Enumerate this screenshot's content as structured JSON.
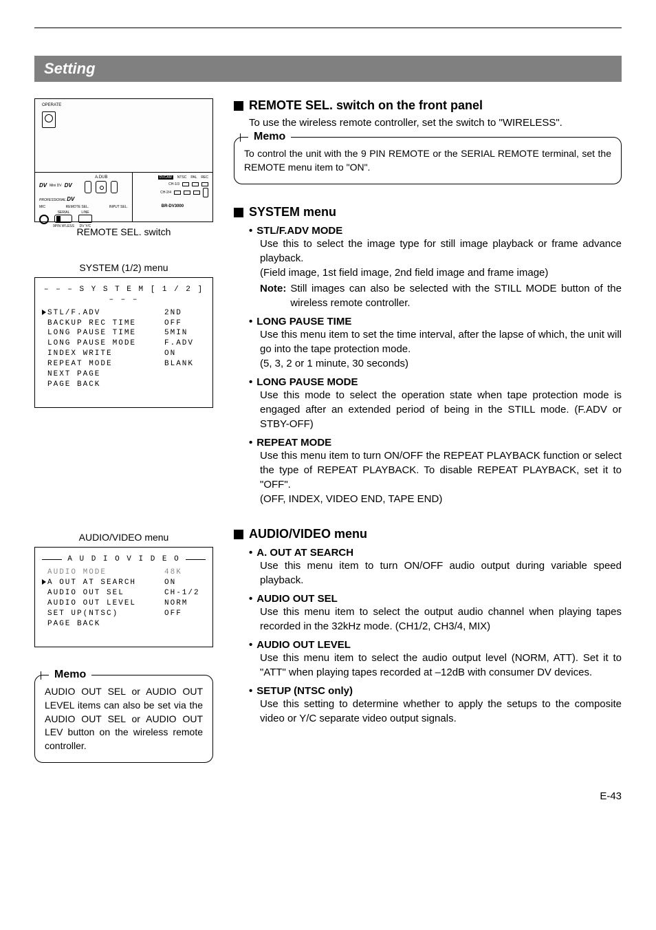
{
  "page": {
    "title": "Setting",
    "pageNumber": "E-43"
  },
  "left": {
    "diagramCaption": "REMOTE SEL. switch",
    "diagram": {
      "operate": "OPERATE",
      "adub": "A.DUB",
      "professional": "PROFESSIONAL",
      "dv": "DV",
      "miniDV": "Mini DV",
      "mic": "MIC",
      "remoteSel": "REMOTE SEL.",
      "inputSel": "INPUT SEL.",
      "serial": "SERIAL",
      "line": "LINE",
      "ninePin": "9PIN",
      "wireless": "W'LESS",
      "dvLabel": "DV",
      "yc": "Y/C",
      "dvcam": "DVCAM",
      "ntsc": "NTSC",
      "pal": "PAL",
      "rec": "REC",
      "ch13": "CH-1/3",
      "ch24": "CH-2/4",
      "model": "BR-DV3000"
    },
    "systemMenu": {
      "caption": "SYSTEM (1/2) menu",
      "title": "– – – S Y S T E M [ 1 / 2 ] – – –",
      "rows": [
        {
          "k": "STL/F.ADV",
          "v": "2ND",
          "sel": true
        },
        {
          "k": "BACKUP REC TIME",
          "v": "OFF"
        },
        {
          "k": "LONG PAUSE TIME",
          "v": "5MIN"
        },
        {
          "k": "LONG PAUSE MODE",
          "v": "F.ADV"
        },
        {
          "k": "INDEX WRITE",
          "v": "ON"
        },
        {
          "k": "REPEAT MODE",
          "v": "BLANK"
        },
        {
          "k": "NEXT PAGE",
          "v": ""
        },
        {
          "k": "PAGE BACK",
          "v": ""
        }
      ]
    },
    "audioVideoMenu": {
      "caption": "AUDIO/VIDEO menu",
      "title": "A U D I O  V I D E O",
      "rows": [
        {
          "k": "AUDIO MODE",
          "v": "48K",
          "dim": true
        },
        {
          "k": "A OUT AT SEARCH",
          "v": "ON",
          "sel": true
        },
        {
          "k": "AUDIO OUT SEL",
          "v": "CH-1/2"
        },
        {
          "k": "AUDIO OUT LEVEL",
          "v": "NORM"
        },
        {
          "k": "SET UP(NTSC)",
          "v": "OFF"
        },
        {
          "k": "PAGE BACK",
          "v": ""
        }
      ]
    },
    "memo": {
      "label": "Memo",
      "text": "AUDIO OUT SEL or AUDIO OUT LEVEL items can also be set via the AUDIO OUT SEL or AUDIO OUT LEV button on the wireless remote controller."
    }
  },
  "right": {
    "remoteSel": {
      "heading": "REMOTE SEL. switch on the front panel",
      "text": "To use the wireless remote controller, set the switch to \"WIRELESS\"."
    },
    "memo": {
      "label": "Memo",
      "text": "To control the unit with the 9 PIN REMOTE or the SERIAL REMOTE terminal, set the REMOTE menu item to \"ON\"."
    },
    "systemMenu": {
      "heading": "SYSTEM menu",
      "items": [
        {
          "h": "STL/F.ADV MODE",
          "body": "Use this to select the image type for still image playback or frame advance playback.",
          "body2": "(Field image, 1st field image, 2nd field image and frame image)",
          "note": "Still images can also be selected with the STILL MODE button of the wireless remote controller."
        },
        {
          "h": "LONG PAUSE TIME",
          "body": "Use this menu item to set the time interval, after the lapse of which, the unit will go into the tape protection mode.",
          "body2": "(5, 3, 2 or 1 minute, 30 seconds)"
        },
        {
          "h": "LONG PAUSE MODE",
          "body": "Use this mode to select the operation state when tape protection mode is engaged after an extended period of being in the STILL mode. (F.ADV or STBY-OFF)"
        },
        {
          "h": "REPEAT MODE",
          "body": "Use this menu item to turn ON/OFF the REPEAT PLAYBACK function or select the type of REPEAT PLAYBACK. To disable REPEAT PLAYBACK, set it to \"OFF\".",
          "body2": "(OFF, INDEX, VIDEO END, TAPE END)"
        }
      ],
      "noteLabel": "Note:"
    },
    "audioVideoMenu": {
      "heading": "AUDIO/VIDEO menu",
      "items": [
        {
          "h": "A. OUT AT SEARCH",
          "body": "Use this menu item to turn ON/OFF audio output during variable speed playback."
        },
        {
          "h": "AUDIO OUT SEL",
          "body": "Use this menu item to select the output audio channel when playing tapes recorded in the 32kHz mode. (CH1/2, CH3/4, MIX)"
        },
        {
          "h": "AUDIO OUT LEVEL",
          "body": "Use this menu item to select the audio output level (NORM, ATT). Set it to \"ATT\" when playing tapes recorded at –12dB with consumer DV devices."
        },
        {
          "h": "SETUP (NTSC only)",
          "body": "Use this setting to determine whether to apply the setups to the composite video or Y/C separate video output signals."
        }
      ]
    }
  }
}
